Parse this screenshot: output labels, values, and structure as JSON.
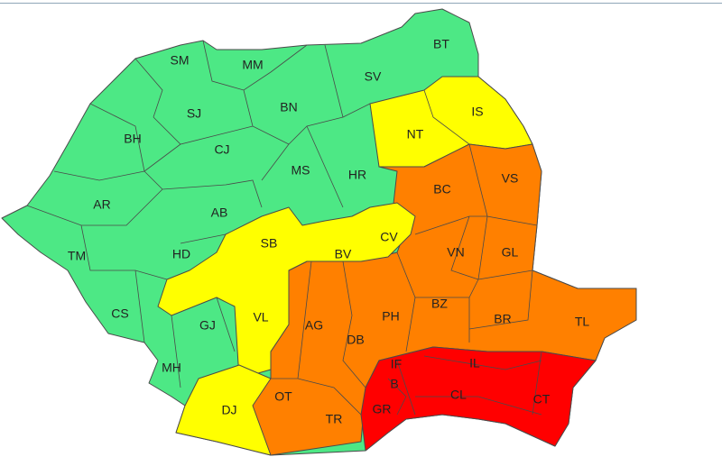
{
  "legend_colors": {
    "green": "#4de885",
    "yellow": "#ffff00",
    "orange": "#ff8000",
    "red": "#ff0000"
  },
  "counties": {
    "SM": {
      "label": "SM",
      "level": "green"
    },
    "MM": {
      "label": "MM",
      "level": "green"
    },
    "BT": {
      "label": "BT",
      "level": "green"
    },
    "SV": {
      "label": "SV",
      "level": "green"
    },
    "SJ": {
      "label": "SJ",
      "level": "green"
    },
    "BN": {
      "label": "BN",
      "level": "green"
    },
    "BH": {
      "label": "BH",
      "level": "green"
    },
    "CJ": {
      "label": "CJ",
      "level": "green"
    },
    "MS": {
      "label": "MS",
      "level": "green"
    },
    "HR": {
      "label": "HR",
      "level": "green"
    },
    "AR": {
      "label": "AR",
      "level": "green"
    },
    "AB": {
      "label": "AB",
      "level": "green"
    },
    "TM": {
      "label": "TM",
      "level": "green"
    },
    "HD": {
      "label": "HD",
      "level": "green"
    },
    "CS": {
      "label": "CS",
      "level": "green"
    },
    "GJ": {
      "label": "GJ",
      "level": "green"
    },
    "MH": {
      "label": "MH",
      "level": "green"
    },
    "NT": {
      "label": "NT",
      "level": "yellow"
    },
    "IS": {
      "label": "IS",
      "level": "yellow"
    },
    "SB": {
      "label": "SB",
      "level": "yellow"
    },
    "BV": {
      "label": "BV",
      "level": "yellow"
    },
    "CV": {
      "label": "CV",
      "level": "yellow"
    },
    "VL": {
      "label": "VL",
      "level": "yellow"
    },
    "DJ": {
      "label": "DJ",
      "level": "yellow"
    },
    "BC": {
      "label": "BC",
      "level": "orange"
    },
    "VS": {
      "label": "VS",
      "level": "orange"
    },
    "VN": {
      "label": "VN",
      "level": "orange"
    },
    "GL": {
      "label": "GL",
      "level": "orange"
    },
    "BZ": {
      "label": "BZ",
      "level": "orange"
    },
    "BR": {
      "label": "BR",
      "level": "orange"
    },
    "TL": {
      "label": "TL",
      "level": "orange"
    },
    "PH": {
      "label": "PH",
      "level": "orange"
    },
    "AG": {
      "label": "AG",
      "level": "orange"
    },
    "DB": {
      "label": "DB",
      "level": "orange"
    },
    "OT": {
      "label": "OT",
      "level": "orange"
    },
    "TR": {
      "label": "TR",
      "level": "orange"
    },
    "IF": {
      "label": "IF",
      "level": "red"
    },
    "B": {
      "label": "B",
      "level": "red"
    },
    "IL": {
      "label": "IL",
      "level": "red"
    },
    "CL": {
      "label": "CL",
      "level": "red"
    },
    "CT": {
      "label": "CT",
      "level": "red"
    },
    "GR": {
      "label": "GR",
      "level": "red"
    }
  }
}
